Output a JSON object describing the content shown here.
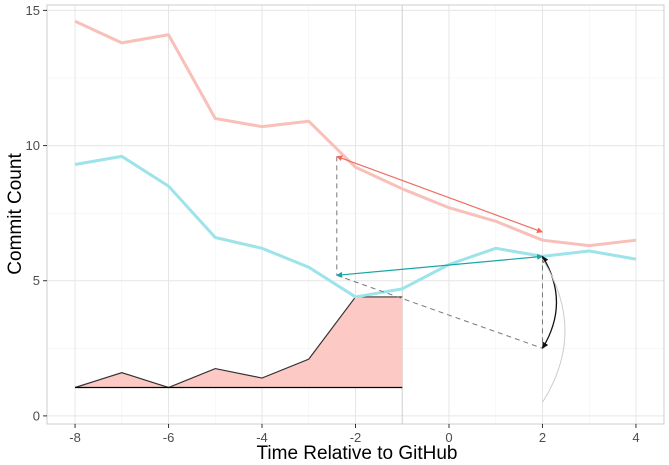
{
  "chart_data": {
    "type": "line",
    "xlabel": "Time Relative to GitHub",
    "ylabel": "Commit Count",
    "xlim": [
      -8.6,
      4.6
    ],
    "ylim": [
      -0.3,
      15.2
    ],
    "x_ticks": [
      -8,
      -6,
      -4,
      -2,
      0,
      2,
      4
    ],
    "y_ticks": [
      0,
      5,
      10,
      15
    ],
    "grid": true,
    "legend": "none",
    "series": [
      {
        "color": "#f8c0b8",
        "x": [
          -8,
          -7,
          -6,
          -5,
          -4,
          -3,
          -2,
          -1,
          0,
          1,
          2,
          3,
          4
        ],
        "y": [
          14.6,
          13.8,
          14.1,
          11.0,
          10.7,
          10.9,
          9.2,
          8.4,
          7.7,
          7.2,
          6.5,
          6.3,
          6.5
        ]
      },
      {
        "color": "#9de3ea",
        "x": [
          -8,
          -7,
          -6,
          -5,
          -4,
          -3,
          -2,
          -1,
          0,
          1,
          2,
          3,
          4
        ],
        "y": [
          9.3,
          9.6,
          8.5,
          6.6,
          6.2,
          5.5,
          4.4,
          4.7,
          5.6,
          6.2,
          5.9,
          6.1,
          5.8
        ]
      }
    ],
    "area": {
      "fill": "#fcc9c4",
      "baseline": 1.05,
      "x": [
        -8,
        -7,
        -6,
        -5,
        -4,
        -3,
        -2,
        -1
      ],
      "y": [
        1.05,
        1.6,
        1.05,
        1.75,
        1.4,
        2.1,
        4.4,
        4.4
      ]
    },
    "annotations": {
      "red_arrow": {
        "color": "#f06b5e",
        "from": [
          -2.4,
          9.6
        ],
        "to": [
          2,
          6.8
        ]
      },
      "teal_arrow": {
        "color": "#1aa6a6",
        "from": [
          -2.4,
          5.2
        ],
        "to": [
          2,
          5.9
        ]
      },
      "dashed_lines": [
        {
          "from": [
            -2.4,
            9.6
          ],
          "to": [
            -2.4,
            5.2
          ]
        },
        {
          "from": [
            -2.4,
            5.2
          ],
          "to": [
            2,
            2.5
          ]
        },
        {
          "from": [
            2,
            5.9
          ],
          "to": [
            2,
            2.5
          ]
        }
      ],
      "curved_arrow": {
        "color": "#111111",
        "from": [
          2,
          2.5
        ],
        "to": [
          2,
          5.9
        ]
      },
      "faint_curve": {
        "color": "#cccccc",
        "from": [
          2,
          0.5
        ],
        "to": [
          2,
          5.8
        ]
      }
    }
  }
}
